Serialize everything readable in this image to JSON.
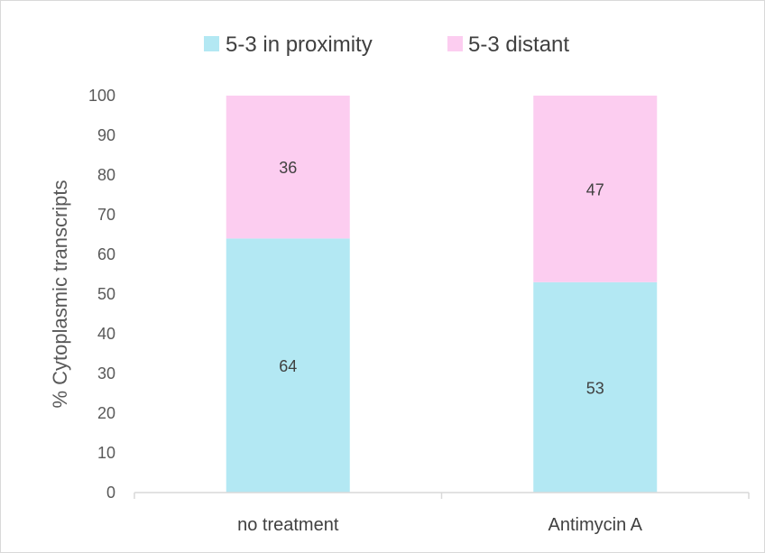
{
  "chart_data": {
    "type": "bar",
    "stacked": true,
    "categories": [
      "no treatment",
      "Antimycin A"
    ],
    "series": [
      {
        "name": "5-3 in proximity",
        "values": [
          64,
          53
        ],
        "color": "#b3e8f3"
      },
      {
        "name": "5-3 distant",
        "values": [
          36,
          47
        ],
        "color": "#fccdf0"
      }
    ],
    "data_labels": [
      [
        "64",
        "53"
      ],
      [
        "36",
        "47"
      ]
    ],
    "title": "",
    "xlabel": "",
    "ylabel": "% Cytoplasmic transcripts",
    "ylim": [
      0,
      100
    ],
    "yticks": [
      0,
      10,
      20,
      30,
      40,
      50,
      60,
      70,
      80,
      90,
      100
    ],
    "grid": false,
    "legend_position": "top"
  },
  "colors": {
    "axis_line": "#d9d9d9",
    "tick_text": "#595959",
    "label_text": "#404040"
  }
}
